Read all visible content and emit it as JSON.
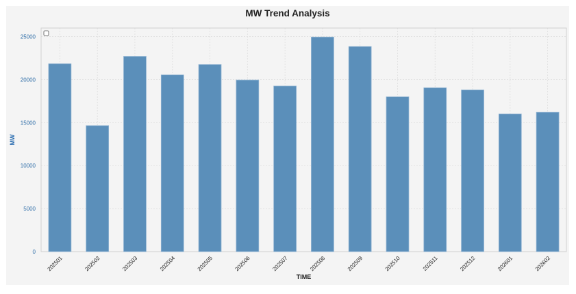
{
  "chart_data": {
    "type": "bar",
    "title": "MW Trend Analysis",
    "xlabel": "TIME",
    "ylabel": "MW",
    "categories": [
      "202501",
      "202502",
      "202503",
      "202504",
      "202505",
      "202506",
      "202507",
      "202508",
      "202509",
      "202510",
      "202511",
      "202512",
      "202601",
      "202602"
    ],
    "values": [
      21850,
      14650,
      22700,
      20550,
      21750,
      19950,
      19250,
      24950,
      23850,
      18000,
      19050,
      18800,
      16000,
      16200
    ],
    "ylim": [
      0,
      26000
    ],
    "yticks": [
      0,
      5000,
      10000,
      15000,
      20000,
      25000
    ],
    "grid": true,
    "legend": "top-left",
    "colors": {
      "bar": "#5b8fba",
      "bar_edge": "#8fb3d2",
      "plot_bg": "#f4f4f4",
      "grid": "#dddddd"
    }
  }
}
